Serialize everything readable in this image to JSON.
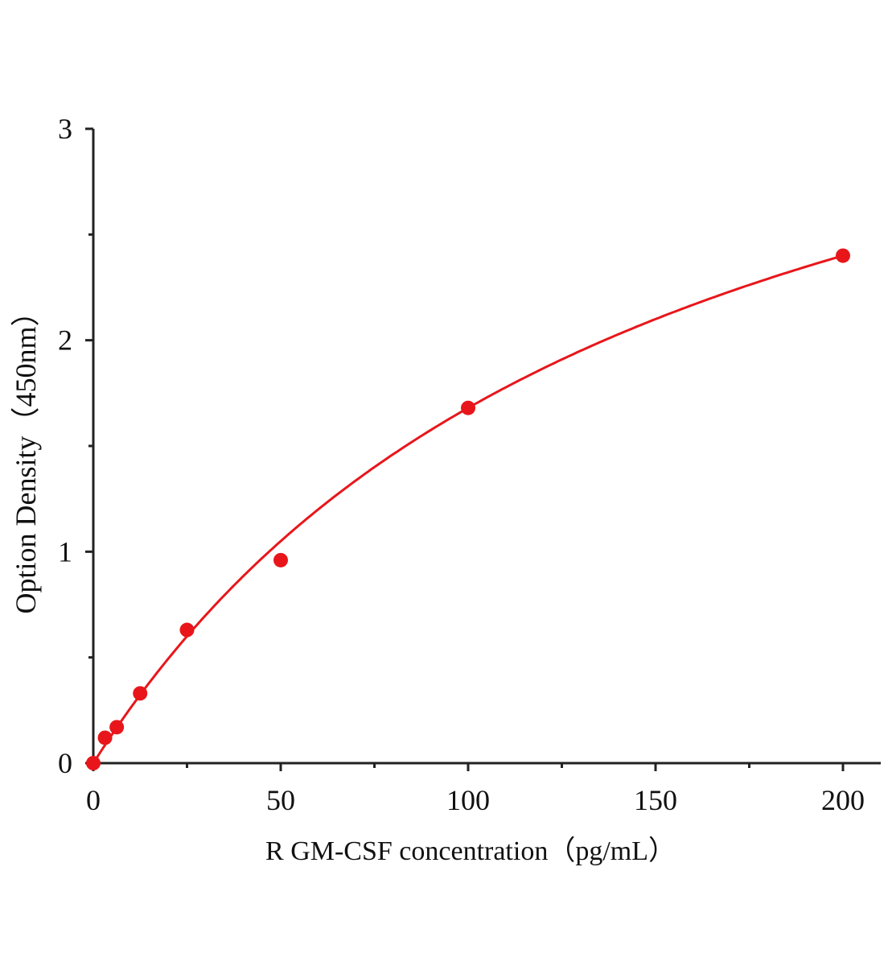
{
  "chart_data": {
    "type": "scatter",
    "title": "",
    "xlabel": "R GM-CSF concentration（pg/mL）",
    "ylabel": "Option Density（450nm）",
    "xlim": [
      0,
      200
    ],
    "ylim": [
      0,
      3
    ],
    "x_ticks": [
      "0",
      "50",
      "100",
      "150",
      "200"
    ],
    "y_ticks": [
      "0",
      "1",
      "2",
      "3"
    ],
    "grid": false,
    "legend": "none",
    "color": "#e8161b",
    "points": {
      "x": [
        0,
        3.125,
        6.25,
        12.5,
        25,
        50,
        100,
        200
      ],
      "y": [
        0.0,
        0.12,
        0.17,
        0.33,
        0.63,
        0.96,
        1.68,
        2.4
      ]
    },
    "fit_curve": true
  }
}
